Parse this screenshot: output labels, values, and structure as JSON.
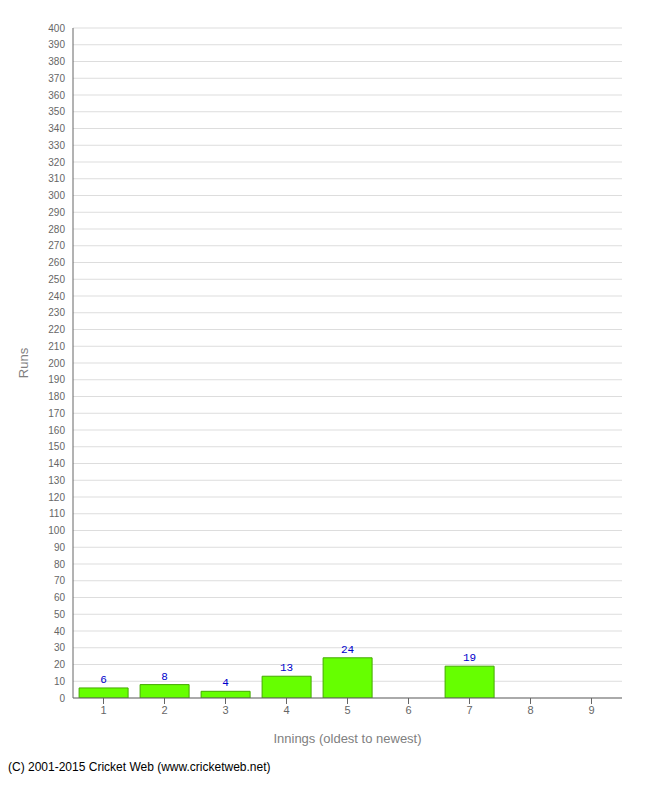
{
  "chart_data": {
    "type": "bar",
    "categories": [
      "1",
      "2",
      "3",
      "4",
      "5",
      "6",
      "7",
      "8",
      "9"
    ],
    "values": [
      6,
      8,
      4,
      13,
      24,
      0,
      19,
      0,
      0
    ],
    "color": "#66ff00",
    "xlabel": "Innings (oldest to newest)",
    "ylabel": "Runs",
    "ylim": [
      0,
      400
    ],
    "yticks": [
      0,
      10,
      20,
      30,
      40,
      50,
      60,
      70,
      80,
      90,
      100,
      110,
      120,
      130,
      140,
      150,
      160,
      170,
      180,
      190,
      200,
      210,
      220,
      230,
      240,
      250,
      260,
      270,
      280,
      290,
      300,
      310,
      320,
      330,
      340,
      350,
      360,
      370,
      380,
      390,
      400
    ],
    "grid": true,
    "data_labels": true,
    "annotations": [
      "(C) 2001-2015 Cricket Web (www.cricketweb.net)"
    ]
  }
}
